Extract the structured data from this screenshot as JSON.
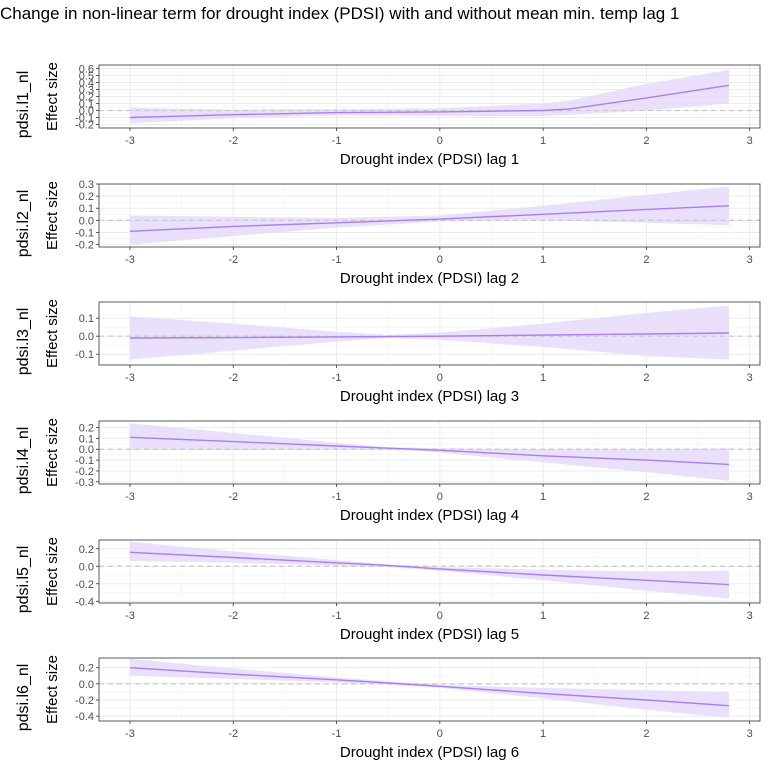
{
  "title": "Change in non-linear term for drought index (PDSI) with and without mean min. temp lag 1",
  "colors": {
    "line": "#a87ef0",
    "band": "#e6dafc",
    "zero": "#c8c8c8",
    "panel_border": "#333333",
    "grid_major": "#ebebeb",
    "grid_minor": "#f5f5f5"
  },
  "chart_data": [
    {
      "type": "line",
      "strip": "pdsi.l1_nl",
      "ylabel": "Effect size",
      "xlabel": "Drought index (PDSI) lag 1",
      "xlim": [
        -3.3,
        3.1
      ],
      "ylim": [
        -0.25,
        0.65
      ],
      "xticks": [
        -3,
        -2,
        -1,
        0,
        1,
        2,
        3
      ],
      "yticks": [
        -0.2,
        -0.1,
        0.0,
        0.1,
        0.2,
        0.3,
        0.4,
        0.5,
        0.6
      ],
      "ytick_labels": [
        "-0.2",
        "-0.1",
        "0.0",
        "0.1",
        "0.2",
        "0.3",
        "0.4",
        "0.5",
        "0.6"
      ],
      "x": [
        -3.0,
        -2.0,
        -1.0,
        0.0,
        1.0,
        1.25,
        2.0,
        2.8
      ],
      "y": [
        -0.1,
        -0.06,
        -0.03,
        -0.02,
        0.0,
        0.02,
        0.18,
        0.36
      ],
      "lower": [
        -0.18,
        -0.11,
        -0.07,
        -0.08,
        -0.08,
        -0.06,
        0.0,
        0.1
      ],
      "upper": [
        0.04,
        0.01,
        0.02,
        0.03,
        0.1,
        0.14,
        0.38,
        0.58
      ]
    },
    {
      "type": "line",
      "strip": "pdsi.l2_nl",
      "ylabel": "Effect size",
      "xlabel": "Drought index (PDSI) lag 2",
      "xlim": [
        -3.3,
        3.1
      ],
      "ylim": [
        -0.22,
        0.3
      ],
      "xticks": [
        -3,
        -2,
        -1,
        0,
        1,
        2,
        3
      ],
      "yticks": [
        -0.2,
        -0.1,
        0.0,
        0.1,
        0.2,
        0.3
      ],
      "ytick_labels": [
        "-0.2",
        "-0.1",
        "0.0",
        "0.1",
        "0.2",
        "0.3"
      ],
      "x": [
        -3.0,
        -2.0,
        -1.0,
        0.0,
        1.0,
        2.0,
        2.8
      ],
      "y": [
        -0.09,
        -0.05,
        -0.02,
        0.01,
        0.05,
        0.09,
        0.12
      ],
      "lower": [
        -0.2,
        -0.13,
        -0.06,
        -0.01,
        0.0,
        -0.02,
        -0.04
      ],
      "upper": [
        0.04,
        0.03,
        0.02,
        0.04,
        0.12,
        0.21,
        0.28
      ]
    },
    {
      "type": "line",
      "strip": "pdsi.l3_nl",
      "ylabel": "Effect size",
      "xlabel": "Drought index (PDSI) lag 3",
      "xlim": [
        -3.3,
        3.1
      ],
      "ylim": [
        -0.16,
        0.19
      ],
      "xticks": [
        -3,
        -2,
        -1,
        0,
        1,
        2,
        3
      ],
      "yticks": [
        -0.1,
        0.0,
        0.1
      ],
      "ytick_labels": [
        "-0.1",
        "0.0",
        "0.1"
      ],
      "x": [
        -3.0,
        -2.0,
        -1.0,
        -0.5,
        0.0,
        1.0,
        2.0,
        2.8
      ],
      "y": [
        -0.01,
        -0.008,
        -0.004,
        -0.002,
        0.0,
        0.006,
        0.012,
        0.018
      ],
      "lower": [
        -0.13,
        -0.08,
        -0.03,
        -0.01,
        -0.02,
        -0.06,
        -0.11,
        -0.13
      ],
      "upper": [
        0.11,
        0.07,
        0.025,
        0.007,
        0.02,
        0.07,
        0.13,
        0.17
      ]
    },
    {
      "type": "line",
      "strip": "pdsi.l4_nl",
      "ylabel": "Effect size",
      "xlabel": "Drought index (PDSI) lag 4",
      "xlim": [
        -3.3,
        3.1
      ],
      "ylim": [
        -0.32,
        0.26
      ],
      "xticks": [
        -3,
        -2,
        -1,
        0,
        1,
        2,
        3
      ],
      "yticks": [
        -0.3,
        -0.2,
        -0.1,
        0.0,
        0.1,
        0.2
      ],
      "ytick_labels": [
        "-0.3",
        "-0.2",
        "-0.1",
        "0.0",
        "0.1",
        "0.2"
      ],
      "x": [
        -3.0,
        -2.0,
        -1.0,
        -0.5,
        0.0,
        1.0,
        2.0,
        2.8
      ],
      "y": [
        0.11,
        0.07,
        0.03,
        0.01,
        -0.01,
        -0.06,
        -0.1,
        -0.14
      ],
      "lower": [
        0.0,
        -0.01,
        0.0,
        0.0,
        -0.03,
        -0.12,
        -0.21,
        -0.29
      ],
      "upper": [
        0.24,
        0.15,
        0.06,
        0.02,
        0.01,
        0.0,
        0.0,
        0.01
      ]
    },
    {
      "type": "line",
      "strip": "pdsi.l5_nl",
      "ylabel": "Effect size",
      "xlabel": "Drought index (PDSI) lag 5",
      "xlim": [
        -3.3,
        3.1
      ],
      "ylim": [
        -0.42,
        0.3
      ],
      "xticks": [
        -3,
        -2,
        -1,
        0,
        1,
        2,
        3
      ],
      "yticks": [
        -0.4,
        -0.2,
        0.0,
        0.2
      ],
      "ytick_labels": [
        "-0.4",
        "-0.2",
        "0.0",
        "0.2"
      ],
      "x": [
        -3.0,
        -2.0,
        -1.0,
        -0.5,
        0.0,
        1.0,
        2.0,
        2.8
      ],
      "y": [
        0.16,
        0.1,
        0.04,
        0.01,
        -0.03,
        -0.1,
        -0.16,
        -0.21
      ],
      "lower": [
        0.06,
        0.04,
        0.01,
        -0.01,
        -0.05,
        -0.16,
        -0.28,
        -0.37
      ],
      "upper": [
        0.28,
        0.17,
        0.07,
        0.02,
        -0.01,
        -0.04,
        -0.06,
        -0.05
      ]
    },
    {
      "type": "line",
      "strip": "pdsi.l6_nl",
      "ylabel": "Effect size",
      "xlabel": "Drought index (PDSI) lag 6",
      "xlim": [
        -3.3,
        3.1
      ],
      "ylim": [
        -0.46,
        0.32
      ],
      "xticks": [
        -3,
        -2,
        -1,
        0,
        1,
        2,
        3
      ],
      "yticks": [
        -0.4,
        -0.2,
        0.0,
        0.2
      ],
      "ytick_labels": [
        "-0.4",
        "-0.2",
        "0.0",
        "0.2"
      ],
      "x": [
        -3.0,
        -2.0,
        -1.0,
        -0.5,
        0.0,
        1.0,
        2.0,
        2.8
      ],
      "y": [
        0.2,
        0.12,
        0.05,
        0.01,
        -0.03,
        -0.12,
        -0.2,
        -0.27
      ],
      "lower": [
        0.1,
        0.06,
        0.02,
        -0.01,
        -0.05,
        -0.18,
        -0.32,
        -0.42
      ],
      "upper": [
        0.31,
        0.19,
        0.08,
        0.03,
        -0.01,
        -0.05,
        -0.08,
        -0.1
      ]
    }
  ]
}
